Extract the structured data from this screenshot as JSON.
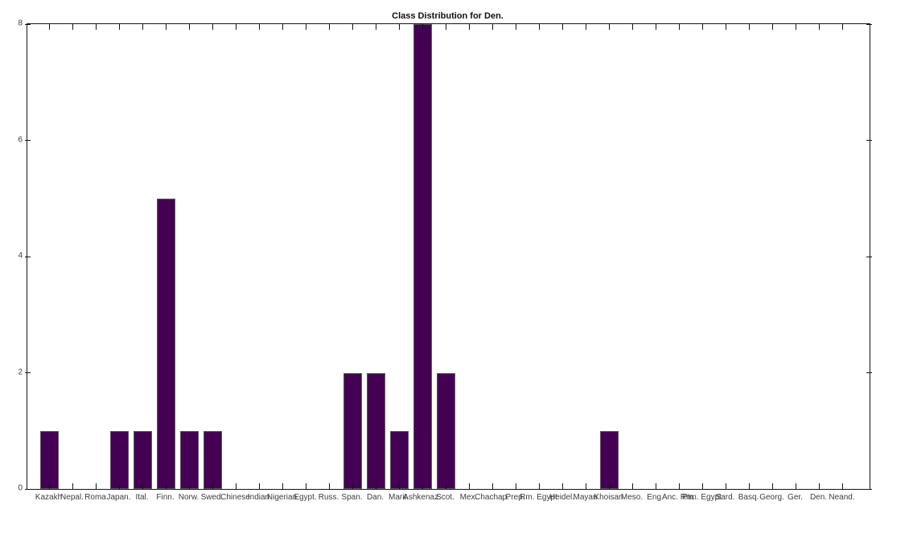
{
  "figure": {
    "background_color": "#ffffff",
    "axis_color": "#141414",
    "tick_label_color": "#3d3d3d"
  },
  "chart_data": {
    "type": "bar",
    "title": "Class Distribution for Den.",
    "xlabel": "",
    "ylabel": "",
    "categories": [
      "Kazakh",
      "Nepal.",
      "Roma",
      "Japan.",
      "Ital.",
      "Finn.",
      "Norw.",
      "Swed.",
      "Chinese",
      "Indian",
      "Nigerian",
      "Egypt.",
      "Russ.",
      "Span.",
      "Dan.",
      "Marit.",
      "Ashkenaz.",
      "Scot.",
      "Mex.",
      "Chachap.",
      "Prep.",
      "Rm. Egypt",
      "Heidel.",
      "Mayan",
      "Khoisan",
      "Meso.",
      "Eng.",
      "Anc. Rm.",
      "Ptm. Egypt",
      "Sard.",
      "Basq.",
      "Georg.",
      "Ger.",
      "Den.",
      "Neand."
    ],
    "values": [
      1,
      0,
      0,
      1,
      1,
      5,
      1,
      1,
      0,
      0,
      0,
      0,
      0,
      2,
      2,
      1,
      8,
      2,
      0,
      0,
      0,
      0,
      0,
      0,
      1,
      0,
      0,
      0,
      0,
      0,
      0,
      0,
      0,
      0,
      0
    ],
    "ylim": [
      0,
      8
    ],
    "yticks": [
      0,
      2,
      4,
      6,
      8
    ],
    "grid": false,
    "legend": "none",
    "bar_color": "#440154",
    "bar_edge_color": "#5a5a5a",
    "bar_width_fraction": 0.8,
    "ticks_direction": "in",
    "box": "on"
  }
}
